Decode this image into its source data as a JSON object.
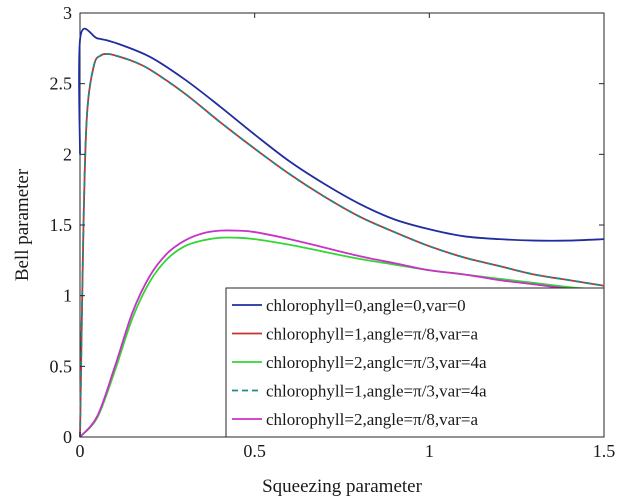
{
  "chart_data": {
    "type": "line",
    "xlabel": "Squeezing parameter",
    "ylabel": "Bell parameter",
    "xlim": [
      0,
      1.5
    ],
    "ylim": [
      0,
      3
    ],
    "xticks": [
      0,
      0.5,
      1,
      1.5
    ],
    "xtick_labels": [
      "0",
      "0.5",
      "1",
      "1.5"
    ],
    "yticks": [
      0,
      0.5,
      1,
      1.5,
      2,
      2.5,
      3
    ],
    "ytick_labels": [
      "0",
      "0.5",
      "1",
      "1.5",
      "2",
      "2.5",
      "3"
    ],
    "grid": false,
    "legend_position": "bottom-right",
    "series": [
      {
        "name": "chlorophyll=0,angle=0,var=0",
        "color": "#1f2d9e",
        "dash": "solid",
        "x": [
          0,
          0.001,
          0.05,
          0.1,
          0.2,
          0.3,
          0.4,
          0.5,
          0.6,
          0.7,
          0.8,
          0.9,
          1.0,
          1.1,
          1.2,
          1.3,
          1.4,
          1.5
        ],
        "y": [
          2.0,
          2.83,
          2.82,
          2.79,
          2.69,
          2.53,
          2.34,
          2.14,
          1.95,
          1.79,
          1.65,
          1.54,
          1.47,
          1.42,
          1.4,
          1.39,
          1.39,
          1.4
        ]
      },
      {
        "name": "chlorophyll=1,angle=π/8,var=a",
        "color": "#c8322d",
        "dash": "solid",
        "x": [
          0,
          0.01,
          0.02,
          0.04,
          0.06,
          0.08,
          0.1,
          0.15,
          0.2,
          0.3,
          0.4,
          0.5,
          0.6,
          0.7,
          0.8,
          0.9,
          1.0,
          1.1,
          1.2,
          1.3,
          1.4,
          1.5
        ],
        "y": [
          0,
          1.5,
          2.28,
          2.63,
          2.7,
          2.71,
          2.7,
          2.66,
          2.6,
          2.43,
          2.23,
          2.04,
          1.86,
          1.7,
          1.56,
          1.45,
          1.35,
          1.27,
          1.21,
          1.15,
          1.11,
          1.07
        ]
      },
      {
        "name": "chlorophyll=2,anglc=π/3,var=4a",
        "color": "#33d633",
        "dash": "solid",
        "x": [
          0,
          0.05,
          0.1,
          0.15,
          0.2,
          0.25,
          0.3,
          0.35,
          0.4,
          0.45,
          0.5,
          0.6,
          0.7,
          0.8,
          0.9,
          1.0,
          1.1,
          1.2,
          1.3,
          1.4,
          1.5
        ],
        "y": [
          0,
          0.14,
          0.47,
          0.84,
          1.1,
          1.26,
          1.35,
          1.39,
          1.41,
          1.41,
          1.4,
          1.36,
          1.31,
          1.26,
          1.22,
          1.18,
          1.15,
          1.12,
          1.09,
          1.06,
          1.04
        ]
      },
      {
        "name": "chlorophyll=1,angle=π/3,var=4a",
        "color": "#1f8a8c",
        "dash": "dashed",
        "x": [
          0,
          0.01,
          0.02,
          0.04,
          0.06,
          0.08,
          0.1,
          0.15,
          0.2,
          0.3,
          0.4,
          0.5,
          0.6,
          0.7,
          0.8,
          0.9,
          1.0,
          1.1,
          1.2,
          1.3,
          1.4,
          1.5
        ],
        "y": [
          0,
          1.5,
          2.28,
          2.63,
          2.7,
          2.71,
          2.7,
          2.66,
          2.6,
          2.43,
          2.23,
          2.04,
          1.86,
          1.7,
          1.56,
          1.45,
          1.35,
          1.27,
          1.21,
          1.15,
          1.11,
          1.07
        ]
      },
      {
        "name": "chlorophyll=2,angle=π/8,var=a",
        "color": "#c832c8",
        "dash": "solid",
        "x": [
          0,
          0.05,
          0.1,
          0.15,
          0.2,
          0.25,
          0.3,
          0.35,
          0.4,
          0.45,
          0.5,
          0.6,
          0.7,
          0.8,
          0.9,
          1.0,
          1.1,
          1.2,
          1.3,
          1.4,
          1.5
        ],
        "y": [
          0,
          0.15,
          0.5,
          0.88,
          1.14,
          1.3,
          1.39,
          1.44,
          1.46,
          1.46,
          1.45,
          1.4,
          1.34,
          1.28,
          1.23,
          1.18,
          1.15,
          1.11,
          1.08,
          1.05,
          1.03
        ]
      }
    ]
  }
}
